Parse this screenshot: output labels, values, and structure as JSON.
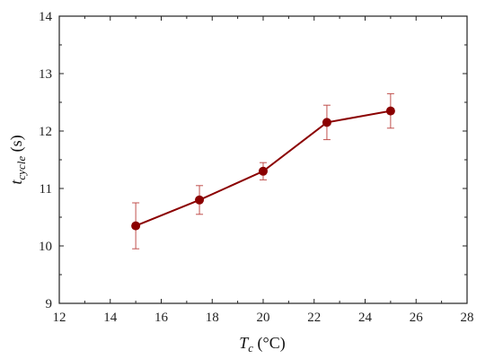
{
  "chart_data": {
    "type": "line",
    "xlabel": {
      "symbol": "T",
      "subscript": "c",
      "unit": " (°C)"
    },
    "ylabel": {
      "symbol": "t",
      "subscript": "cycle",
      "unit": " (s)"
    },
    "xlim": [
      12,
      28
    ],
    "ylim": [
      9,
      14
    ],
    "xticks": [
      12,
      14,
      16,
      18,
      20,
      22,
      24,
      26,
      28
    ],
    "yticks": [
      9,
      10,
      11,
      12,
      13,
      14
    ],
    "grid": false,
    "series": [
      {
        "color": "#8b0000",
        "marker": "circle",
        "x": [
          15,
          17.5,
          20,
          22.5,
          25
        ],
        "y": [
          10.35,
          10.8,
          11.3,
          12.15,
          12.35
        ],
        "yerr": [
          0.4,
          0.25,
          0.15,
          0.3,
          0.3
        ]
      }
    ],
    "error_bar_color": "#c0504d"
  }
}
